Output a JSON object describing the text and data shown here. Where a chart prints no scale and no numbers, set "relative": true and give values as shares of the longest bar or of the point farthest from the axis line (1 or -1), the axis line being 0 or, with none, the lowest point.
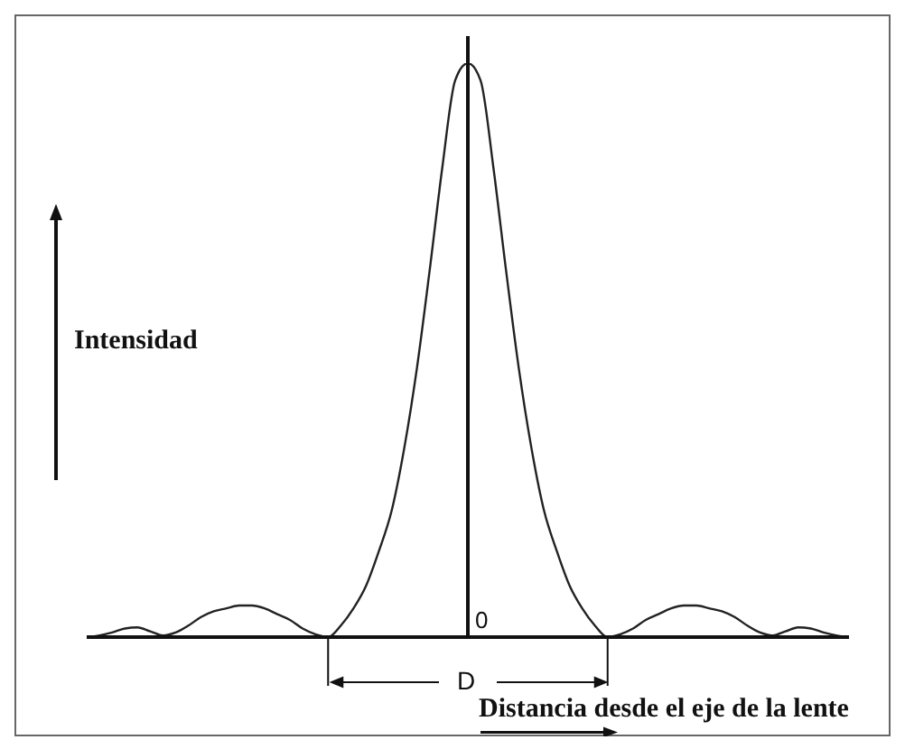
{
  "chart_data": {
    "type": "line",
    "relative": true,
    "xlabel": "Distancia desde el eje de la lente",
    "ylabel": "Intensidad",
    "annotations": [
      "0",
      "D"
    ],
    "legend": false,
    "grid": false,
    "marker": "none",
    "categories": [
      null,
      null,
      null,
      null,
      null,
      null,
      null,
      null,
      null,
      null,
      null,
      null,
      null,
      null,
      null,
      null,
      null,
      null,
      null,
      null,
      null,
      null,
      null,
      null,
      null,
      null,
      null,
      null,
      null,
      null,
      null,
      null,
      null,
      null,
      null,
      null,
      null,
      null,
      null,
      null,
      null,
      null,
      null,
      null,
      null,
      null,
      null,
      null,
      null,
      null,
      null,
      null,
      null,
      null,
      null,
      null,
      null,
      null,
      null,
      null,
      null
    ],
    "series": [
      {
        "color": "#222222",
        "values": [
          0,
          0.003,
          0.008,
          0.015,
          0.017,
          0.01,
          0.003,
          0.008,
          0.02,
          0.035,
          0.045,
          0.05,
          0.055,
          0.055,
          0.05,
          0.04,
          0.03,
          0.015,
          0.005,
          0,
          0.02,
          0.05,
          0.09,
          0.15,
          0.22,
          0.33,
          0.47,
          0.64,
          0.82,
          0.97,
          1.0,
          0.97,
          0.82,
          0.64,
          0.47,
          0.33,
          0.22,
          0.15,
          0.09,
          0.05,
          0.02,
          0,
          0.005,
          0.015,
          0.03,
          0.04,
          0.05,
          0.055,
          0.055,
          0.05,
          0.045,
          0.035,
          0.02,
          0.008,
          0.003,
          0.01,
          0.017,
          0.015,
          0.008,
          0.003,
          0
        ]
      }
    ]
  }
}
